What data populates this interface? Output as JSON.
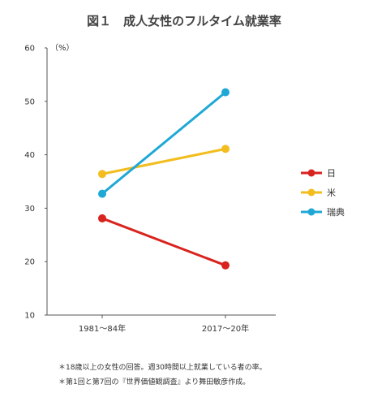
{
  "chart_data": {
    "type": "line",
    "title": "図１　成人女性のフルタイム就業率",
    "unit_label": "（%）",
    "categories": [
      "1981〜84年",
      "2017〜20年"
    ],
    "ylim": [
      10,
      60
    ],
    "yticks": [
      10,
      20,
      30,
      40,
      50,
      60
    ],
    "grid": false,
    "legend_position": "right",
    "series": [
      {
        "name": "日",
        "color": "#d9231f",
        "values": [
          28.1,
          19.3
        ]
      },
      {
        "name": "米",
        "color": "#f2bd1d",
        "values": [
          36.4,
          41.1
        ]
      },
      {
        "name": "瑞典",
        "color": "#1fa8d6",
        "values": [
          32.7,
          51.7
        ]
      }
    ],
    "notes": [
      "＊18歳以上の女性の回答。週30時間以上就業している者の率。",
      "＊第1回と第7回の『世界価値観調査』より舞田敏彦作成。"
    ]
  }
}
